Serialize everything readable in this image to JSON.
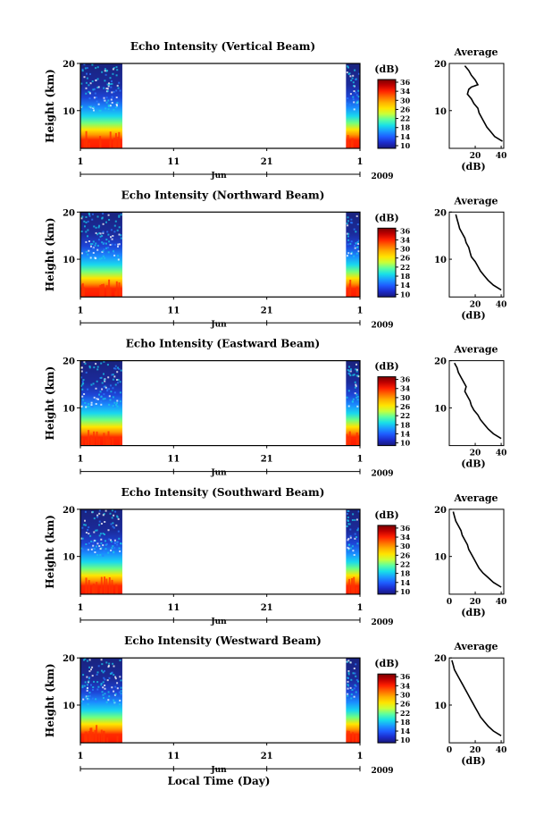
{
  "figure": {
    "xlabel": "Local Time (Day)",
    "x_month": "Jun",
    "x_year": "2009",
    "x_ticks": [
      "1",
      "11",
      "21",
      "1"
    ],
    "ylabel": "Height (km)",
    "y_ticks": [
      "20",
      "10"
    ],
    "colorbar_unit": "(dB)",
    "colorbar_ticks": [
      "36",
      "34",
      "30",
      "26",
      "22",
      "18",
      "14",
      "10"
    ],
    "colorbar_colors": [
      "#7a0000",
      "#c00000",
      "#ff2000",
      "#ff6a00",
      "#ffb000",
      "#ffe400",
      "#c8ff3a",
      "#5cffa0",
      "#18e0e8",
      "#1a9cff",
      "#1e5cff",
      "#1c2ccc",
      "#18187a"
    ],
    "background_color": "#1b2a8c",
    "avg_title": "Average",
    "avg_xlabel": "(dB)"
  },
  "chart_data": [
    {
      "type": "heatmap",
      "title": "Echo Intensity (Vertical Beam)",
      "xlim": [
        1,
        31
      ],
      "ylim": [
        2,
        20
      ],
      "data_segments": [
        [
          1,
          5.5
        ],
        [
          29.5,
          31
        ]
      ],
      "colorbar_range": [
        10,
        36
      ],
      "avg_profile": {
        "title": "Average",
        "xlabel": "(dB)",
        "x_ticks": [
          "20",
          "40"
        ],
        "xlim": [
          0,
          42
        ],
        "height": [
          19.5,
          18.5,
          17.5,
          16.5,
          15.5,
          15.0,
          14.5,
          13.5,
          12.5,
          11.5,
          10.5,
          9.5,
          8.5,
          7.5,
          6.5,
          5.5,
          4.5,
          3.5
        ],
        "intensity": [
          12,
          15,
          17,
          20,
          22,
          17,
          15,
          14,
          17,
          19,
          22,
          23,
          25,
          27,
          29,
          32,
          35,
          41
        ]
      }
    },
    {
      "type": "heatmap",
      "title": "Echo Intensity (Northward Beam)",
      "xlim": [
        1,
        31
      ],
      "ylim": [
        2,
        20
      ],
      "data_segments": [
        [
          1,
          5.5
        ],
        [
          29.5,
          31
        ]
      ],
      "colorbar_range": [
        10,
        36
      ],
      "avg_profile": {
        "title": "Average",
        "xlabel": "(dB)",
        "x_ticks": [
          "20",
          "40"
        ],
        "xlim": [
          0,
          42
        ],
        "height": [
          19.5,
          18.5,
          17.5,
          16.5,
          15.5,
          14.5,
          13.5,
          12.5,
          11.5,
          10.5,
          9.5,
          8.5,
          7.5,
          6.5,
          5.5,
          4.5,
          3.5
        ],
        "intensity": [
          5,
          6,
          7,
          8,
          10,
          12,
          13,
          15,
          16,
          17,
          20,
          22,
          24,
          27,
          30,
          34,
          40
        ]
      }
    },
    {
      "type": "heatmap",
      "title": "Echo Intensity (Eastward Beam)",
      "xlim": [
        1,
        31
      ],
      "ylim": [
        2,
        20
      ],
      "data_segments": [
        [
          1,
          5.5
        ],
        [
          29.5,
          31
        ]
      ],
      "colorbar_range": [
        10,
        36
      ],
      "avg_profile": {
        "title": "Average",
        "xlabel": "(dB)",
        "x_ticks": [
          "20",
          "40"
        ],
        "xlim": [
          0,
          42
        ],
        "height": [
          19.5,
          18.5,
          17.5,
          16.5,
          15.5,
          14.5,
          13.5,
          12.5,
          11.5,
          10.5,
          9.5,
          8.5,
          7.5,
          6.5,
          5.5,
          4.5,
          3.5
        ],
        "intensity": [
          4,
          6,
          7,
          9,
          11,
          13,
          12,
          14,
          16,
          17,
          19,
          22,
          24,
          27,
          30,
          34,
          40
        ]
      }
    },
    {
      "type": "heatmap",
      "title": "Echo Intensity (Southward Beam)",
      "xlim": [
        1,
        31
      ],
      "ylim": [
        2,
        20
      ],
      "data_segments": [
        [
          1,
          5.5
        ],
        [
          29.5,
          31
        ]
      ],
      "colorbar_range": [
        10,
        36
      ],
      "avg_profile": {
        "title": "Average",
        "xlabel": "(dB)",
        "x_ticks": [
          "0",
          "20",
          "40"
        ],
        "xlim": [
          0,
          42
        ],
        "height": [
          19.5,
          18.5,
          17.5,
          16.5,
          15.5,
          14.5,
          13.5,
          12.5,
          11.5,
          10.5,
          9.5,
          8.5,
          7.5,
          6.5,
          5.5,
          4.5,
          3.5
        ],
        "intensity": [
          3,
          4,
          5,
          7,
          9,
          10,
          12,
          14,
          15,
          17,
          19,
          21,
          23,
          26,
          30,
          34,
          40
        ]
      }
    },
    {
      "type": "heatmap",
      "title": "Echo Intensity (Westward Beam)",
      "xlim": [
        1,
        31
      ],
      "ylim": [
        2,
        20
      ],
      "data_segments": [
        [
          1,
          5.5
        ],
        [
          29.5,
          31
        ]
      ],
      "colorbar_range": [
        10,
        36
      ],
      "avg_profile": {
        "title": "Average",
        "xlabel": "(dB)",
        "x_ticks": [
          "0",
          "20",
          "40"
        ],
        "xlim": [
          0,
          42
        ],
        "height": [
          19.5,
          18.5,
          17.5,
          16.5,
          15.5,
          14.5,
          13.5,
          12.5,
          11.5,
          10.5,
          9.5,
          8.5,
          7.5,
          6.5,
          5.5,
          4.5,
          3.5
        ],
        "intensity": [
          2,
          3,
          4,
          6,
          8,
          10,
          12,
          14,
          16,
          18,
          20,
          22,
          24,
          27,
          30,
          34,
          40
        ]
      }
    }
  ]
}
